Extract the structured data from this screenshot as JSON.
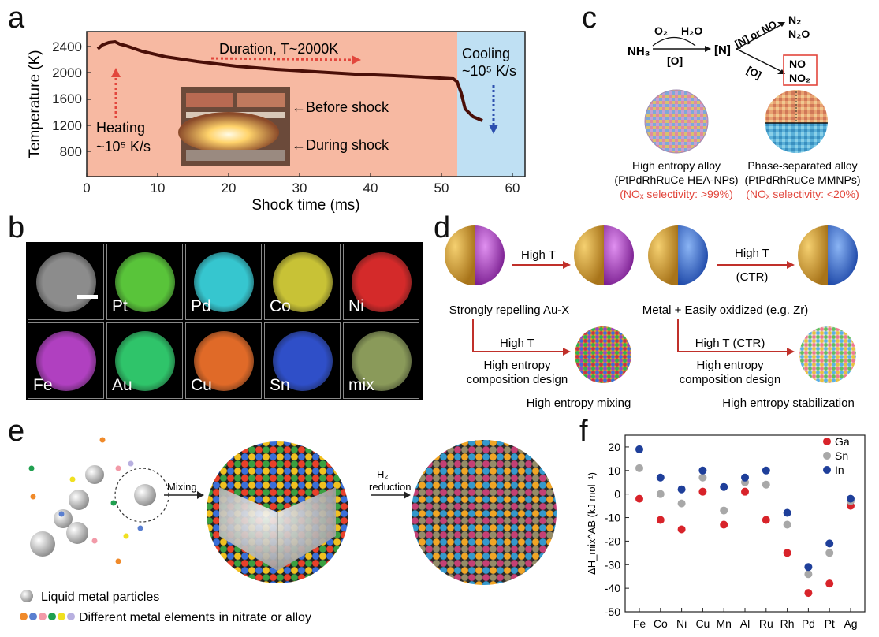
{
  "panel_labels": {
    "a": "a",
    "b": "b",
    "c": "c",
    "d": "d",
    "e": "e",
    "f": "f"
  },
  "panel_a": {
    "ylabel": "Temperature (K)",
    "xlabel": "Shock time (ms)",
    "yticks": [
      "2400",
      "2000",
      "1600",
      "1200",
      "800"
    ],
    "xticks": [
      "0",
      "10",
      "20",
      "30",
      "40",
      "50",
      "60"
    ],
    "duration_text": "Duration, T~2000K",
    "heating_line1": "Heating",
    "heating_line2": "~10⁵ K/s",
    "cooling_line1": "Cooling",
    "cooling_line2": "~10⁵ K/s",
    "before_shock": "←Before shock",
    "during_shock": "←During shock",
    "colors": {
      "heating_bg": "#f7b9a2",
      "cooling_bg": "#bfe0f3",
      "curve": "#4a0f08",
      "arrow_red": "#e2463c",
      "arrow_blue": "#2c4fae"
    }
  },
  "panel_b": {
    "tiles": [
      {
        "label": "",
        "color": "#8c8c8c"
      },
      {
        "label": "Pt",
        "color": "#59c43a"
      },
      {
        "label": "Pd",
        "color": "#36c6cf"
      },
      {
        "label": "Co",
        "color": "#c8c236"
      },
      {
        "label": "Ni",
        "color": "#d42a2a"
      },
      {
        "label": "Fe",
        "color": "#b040c0"
      },
      {
        "label": "Au",
        "color": "#2fc46a"
      },
      {
        "label": "Cu",
        "color": "#e06a28"
      },
      {
        "label": "Sn",
        "color": "#2f4fc8"
      },
      {
        "label": "mix",
        "color": "#8a9a5a"
      }
    ]
  },
  "panel_c": {
    "nh3": "NH₃",
    "o2": "O₂",
    "h2o": "H₂O",
    "o_bracket": "[O]",
    "n_bracket": "[N]",
    "n_or_no": "[N] or NO",
    "o_lower": "[O]",
    "n2": "N₂",
    "n2o": "N₂O",
    "no": "NO",
    "no2": "NO₂",
    "left_title": "High entropy alloy",
    "left_sub": "(PtPdRhRuCe HEA-NPs)",
    "left_sel": "(NOₓ selectivity: >99%)",
    "right_title": "Phase-separated alloy",
    "right_sub": "(PtPdRhRuCe MMNPs)",
    "right_sel": "(NOₓ selectivity: <20%)",
    "red": "#e2463c"
  },
  "panel_d": {
    "high_t_1": "High T",
    "high_t_2": "High T",
    "ctr": "(CTR)",
    "left_caption": "Strongly repelling Au-X",
    "right_caption": "Metal + Easily oxidized (e.g. Zr)",
    "lower_left_ht": "High T",
    "lower_left_design1": "High entropy",
    "lower_left_design2": "composition design",
    "lower_right_ht": "High T (CTR)",
    "lower_right_design1": "High entropy",
    "lower_right_design2": "composition design",
    "mixing_caption": "High entropy mixing",
    "stabilization_caption": "High entropy stabilization",
    "gold": "#d9a52c",
    "purple": "#b048c8",
    "blue": "#3a6fd8",
    "arrow": "#c0302a"
  },
  "panel_e": {
    "mixing": "Mixing",
    "h2": "H₂",
    "reduction": "reduction",
    "legend_liquid": "Liquid metal particles",
    "legend_elements": "Different metal elements in nitrate or alloy",
    "dot_colors": [
      "#f08a2a",
      "#5a7fd0",
      "#f29aa8",
      "#20a050",
      "#f0e020",
      "#b8b0e0"
    ]
  },
  "chart_data": {
    "type": "scatter",
    "title": "",
    "xlabel": "",
    "ylabel": "ΔH_mix^AB (kJ mol⁻¹)",
    "categories": [
      "Fe",
      "Co",
      "Ni",
      "Cu",
      "Mn",
      "Al",
      "Ru",
      "Rh",
      "Pd",
      "Pt",
      "Ag"
    ],
    "ylim": [
      -50,
      25
    ],
    "yticks": [
      20,
      10,
      0,
      -10,
      -20,
      -30,
      -40,
      -50
    ],
    "legend_position": "top-right",
    "series": [
      {
        "name": "Ga",
        "color": "#d8232a",
        "values": [
          -2,
          -11,
          -15,
          1,
          -13,
          1,
          -11,
          -25,
          -42,
          -38,
          -5
        ]
      },
      {
        "name": "Sn",
        "color": "#a8a8a8",
        "values": [
          11,
          0,
          -4,
          7,
          -7,
          5,
          4,
          -13,
          -34,
          -25,
          -3
        ]
      },
      {
        "name": "In",
        "color": "#1f3f9a",
        "values": [
          19,
          7,
          2,
          10,
          3,
          7,
          10,
          -8,
          -31,
          -21,
          -2
        ]
      }
    ]
  }
}
